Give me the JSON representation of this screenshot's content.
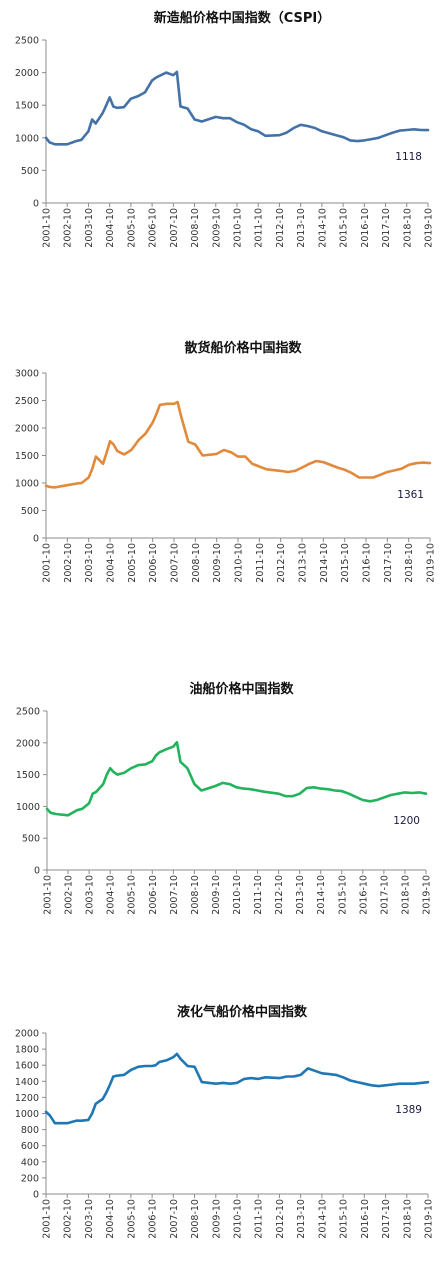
{
  "chart_data": [
    {
      "type": "line",
      "title": "新造船价格中国指数（CSPI）",
      "color": "#4472a8",
      "ylim": [
        0,
        2500
      ],
      "yticks": [
        0,
        500,
        1000,
        1500,
        2000,
        2500
      ],
      "ytick_labels": [
        "0",
        "500",
        "1000",
        "1500",
        "2000",
        "2500"
      ],
      "xtick_labels": [
        "2001-10",
        "2002-10",
        "2003-10",
        "2004-10",
        "2005-10",
        "2006-10",
        "2007-10",
        "2008-10",
        "2009-10",
        "2010-10",
        "2011-10",
        "2012-10",
        "2013-10",
        "2014-10",
        "2015-10",
        "2016-10",
        "2017-10",
        "2018-10",
        "2019-10"
      ],
      "end_label": "1118",
      "series": [
        {
          "x": [
            2001.83,
            2002.0,
            2002.25,
            2002.83,
            2003.25,
            2003.5,
            2003.83,
            2004.0,
            2004.17,
            2004.5,
            2004.67,
            2004.83,
            2005.0,
            2005.17,
            2005.5,
            2005.83,
            2006.17,
            2006.5,
            2006.83,
            2007.0,
            2007.17,
            2007.5,
            2007.83,
            2008.0,
            2008.17,
            2008.5,
            2008.83,
            2009.17,
            2009.83,
            2010.17,
            2010.5,
            2010.83,
            2011.17,
            2011.5,
            2011.83,
            2012.17,
            2012.83,
            2013.17,
            2013.5,
            2013.83,
            2014.17,
            2014.5,
            2014.83,
            2015.17,
            2015.5,
            2015.83,
            2016.17,
            2016.5,
            2016.83,
            2017.17,
            2017.5,
            2017.83,
            2018.17,
            2018.5,
            2018.83,
            2019.17,
            2019.5,
            2019.83
          ],
          "values": [
            1000,
            930,
            900,
            900,
            950,
            970,
            1100,
            1280,
            1220,
            1380,
            1500,
            1620,
            1480,
            1460,
            1470,
            1600,
            1640,
            1700,
            1880,
            1920,
            1950,
            2000,
            1960,
            2010,
            1480,
            1450,
            1280,
            1250,
            1320,
            1300,
            1300,
            1240,
            1200,
            1130,
            1100,
            1030,
            1040,
            1080,
            1150,
            1200,
            1180,
            1150,
            1100,
            1070,
            1040,
            1010,
            960,
            950,
            960,
            980,
            1000,
            1040,
            1080,
            1110,
            1120,
            1130,
            1120,
            1118
          ]
        }
      ]
    },
    {
      "type": "line",
      "title": "散货船价格中国指数",
      "color": "#e2893c",
      "ylim": [
        0,
        3000
      ],
      "yticks": [
        0,
        500,
        1000,
        1500,
        2000,
        2500,
        3000
      ],
      "ytick_labels": [
        "0",
        "500",
        "1000",
        "1500",
        "2000",
        "2500",
        "3000"
      ],
      "xtick_labels": [
        "2001-10",
        "2002-10",
        "2003-10",
        "2004-10",
        "2005-10",
        "2006-10",
        "2007-10",
        "2008-10",
        "2009-10",
        "2010-10",
        "2011-10",
        "2012-10",
        "2013-10",
        "2014-10",
        "2015-10",
        "2016-10",
        "2017-10",
        "2018-10",
        "2019-10"
      ],
      "end_label": "1361",
      "series": [
        {
          "x": [
            2001.83,
            2002.0,
            2002.25,
            2002.83,
            2003.25,
            2003.5,
            2003.83,
            2004.0,
            2004.17,
            2004.5,
            2004.67,
            2004.83,
            2005.0,
            2005.17,
            2005.5,
            2005.83,
            2006.17,
            2006.5,
            2006.83,
            2007.0,
            2007.17,
            2007.5,
            2007.83,
            2008.0,
            2008.17,
            2008.5,
            2008.83,
            2009.17,
            2009.83,
            2010.17,
            2010.5,
            2010.83,
            2011.17,
            2011.5,
            2011.83,
            2012.17,
            2012.83,
            2013.17,
            2013.5,
            2013.83,
            2014.17,
            2014.5,
            2014.83,
            2015.17,
            2015.5,
            2015.83,
            2016.17,
            2016.5,
            2016.83,
            2017.17,
            2017.5,
            2017.83,
            2018.17,
            2018.5,
            2018.83,
            2019.17,
            2019.5,
            2019.83
          ],
          "values": [
            950,
            930,
            920,
            960,
            990,
            1000,
            1100,
            1260,
            1480,
            1350,
            1550,
            1760,
            1700,
            1580,
            1520,
            1600,
            1780,
            1900,
            2100,
            2250,
            2420,
            2440,
            2440,
            2470,
            2200,
            1750,
            1700,
            1500,
            1530,
            1600,
            1560,
            1480,
            1480,
            1350,
            1300,
            1250,
            1220,
            1200,
            1220,
            1280,
            1350,
            1400,
            1380,
            1330,
            1280,
            1240,
            1180,
            1100,
            1100,
            1100,
            1150,
            1200,
            1230,
            1260,
            1330,
            1360,
            1370,
            1361
          ]
        }
      ]
    },
    {
      "type": "line",
      "title": "油船价格中国指数",
      "color": "#22b35c",
      "ylim": [
        0,
        2500
      ],
      "yticks": [
        0,
        500,
        1000,
        1500,
        2000,
        2500
      ],
      "ytick_labels": [
        "0",
        "500",
        "1000",
        "1500",
        "2000",
        "2500"
      ],
      "xtick_labels": [
        "2001-10",
        "2002-10",
        "2003-10",
        "2004-10",
        "2005-10",
        "2006-10",
        "2007-10",
        "2008-10",
        "2009-10",
        "2010-10",
        "2011-10",
        "2012-10",
        "2013-10",
        "2014-10",
        "2015-10",
        "2016-10",
        "2017-10",
        "2018-10",
        "2019-10"
      ],
      "end_label": "1200",
      "series": [
        {
          "x": [
            2001.83,
            2002.0,
            2002.25,
            2002.83,
            2003.25,
            2003.5,
            2003.83,
            2004.0,
            2004.17,
            2004.5,
            2004.67,
            2004.83,
            2005.0,
            2005.17,
            2005.5,
            2005.83,
            2006.17,
            2006.5,
            2006.83,
            2007.0,
            2007.17,
            2007.5,
            2007.83,
            2008.0,
            2008.17,
            2008.5,
            2008.83,
            2009.17,
            2009.83,
            2010.17,
            2010.5,
            2010.83,
            2011.17,
            2011.5,
            2011.83,
            2012.17,
            2012.83,
            2013.17,
            2013.5,
            2013.83,
            2014.17,
            2014.5,
            2014.83,
            2015.17,
            2015.5,
            2015.83,
            2016.17,
            2016.5,
            2016.83,
            2017.17,
            2017.5,
            2017.83,
            2018.17,
            2018.5,
            2018.83,
            2019.17,
            2019.5,
            2019.83
          ],
          "values": [
            960,
            900,
            880,
            860,
            940,
            960,
            1050,
            1200,
            1230,
            1350,
            1500,
            1600,
            1540,
            1500,
            1530,
            1600,
            1650,
            1660,
            1710,
            1800,
            1850,
            1900,
            1940,
            2010,
            1700,
            1600,
            1350,
            1250,
            1320,
            1370,
            1350,
            1300,
            1280,
            1270,
            1250,
            1230,
            1200,
            1160,
            1160,
            1200,
            1290,
            1300,
            1280,
            1270,
            1250,
            1240,
            1200,
            1150,
            1100,
            1080,
            1100,
            1140,
            1180,
            1200,
            1220,
            1210,
            1220,
            1200
          ]
        }
      ]
    },
    {
      "type": "line",
      "title": "液化气船价格中国指数",
      "color": "#1e78b5",
      "ylim": [
        0,
        2000
      ],
      "yticks": [
        0,
        200,
        400,
        600,
        800,
        1000,
        1200,
        1400,
        1600,
        1800,
        2000
      ],
      "ytick_labels": [
        "0",
        "200",
        "400",
        "600",
        "800",
        "1000",
        "1200",
        "1400",
        "1600",
        "1800",
        "2000"
      ],
      "xtick_labels": [
        "2001-10",
        "2002-10",
        "2003-10",
        "2004-10",
        "2005-10",
        "2006-10",
        "2007-10",
        "2008-10",
        "2009-10",
        "2010-10",
        "2011-10",
        "2012-10",
        "2013-10",
        "2014-10",
        "2015-10",
        "2016-10",
        "2017-10",
        "2018-10",
        "2019-10"
      ],
      "end_label": "1389",
      "series": [
        {
          "x": [
            2001.83,
            2002.0,
            2002.25,
            2002.83,
            2003.25,
            2003.5,
            2003.83,
            2004.0,
            2004.17,
            2004.5,
            2004.67,
            2004.83,
            2005.0,
            2005.17,
            2005.5,
            2005.83,
            2006.17,
            2006.5,
            2006.83,
            2007.0,
            2007.17,
            2007.5,
            2007.83,
            2008.0,
            2008.17,
            2008.5,
            2008.83,
            2009.17,
            2009.83,
            2010.17,
            2010.5,
            2010.83,
            2011.17,
            2011.5,
            2011.83,
            2012.17,
            2012.83,
            2013.17,
            2013.5,
            2013.83,
            2014.17,
            2014.5,
            2014.83,
            2015.17,
            2015.5,
            2015.83,
            2016.17,
            2016.5,
            2016.83,
            2017.17,
            2017.5,
            2017.83,
            2018.17,
            2018.5,
            2018.83,
            2019.17,
            2019.5,
            2019.83
          ],
          "values": [
            1020,
            980,
            880,
            880,
            910,
            910,
            920,
            1000,
            1120,
            1180,
            1260,
            1350,
            1460,
            1470,
            1480,
            1540,
            1580,
            1590,
            1590,
            1600,
            1640,
            1660,
            1700,
            1740,
            1680,
            1590,
            1580,
            1390,
            1370,
            1380,
            1370,
            1380,
            1430,
            1440,
            1430,
            1450,
            1440,
            1460,
            1460,
            1480,
            1560,
            1530,
            1500,
            1490,
            1480,
            1450,
            1410,
            1390,
            1370,
            1350,
            1340,
            1350,
            1360,
            1370,
            1370,
            1370,
            1380,
            1389
          ]
        }
      ]
    }
  ]
}
